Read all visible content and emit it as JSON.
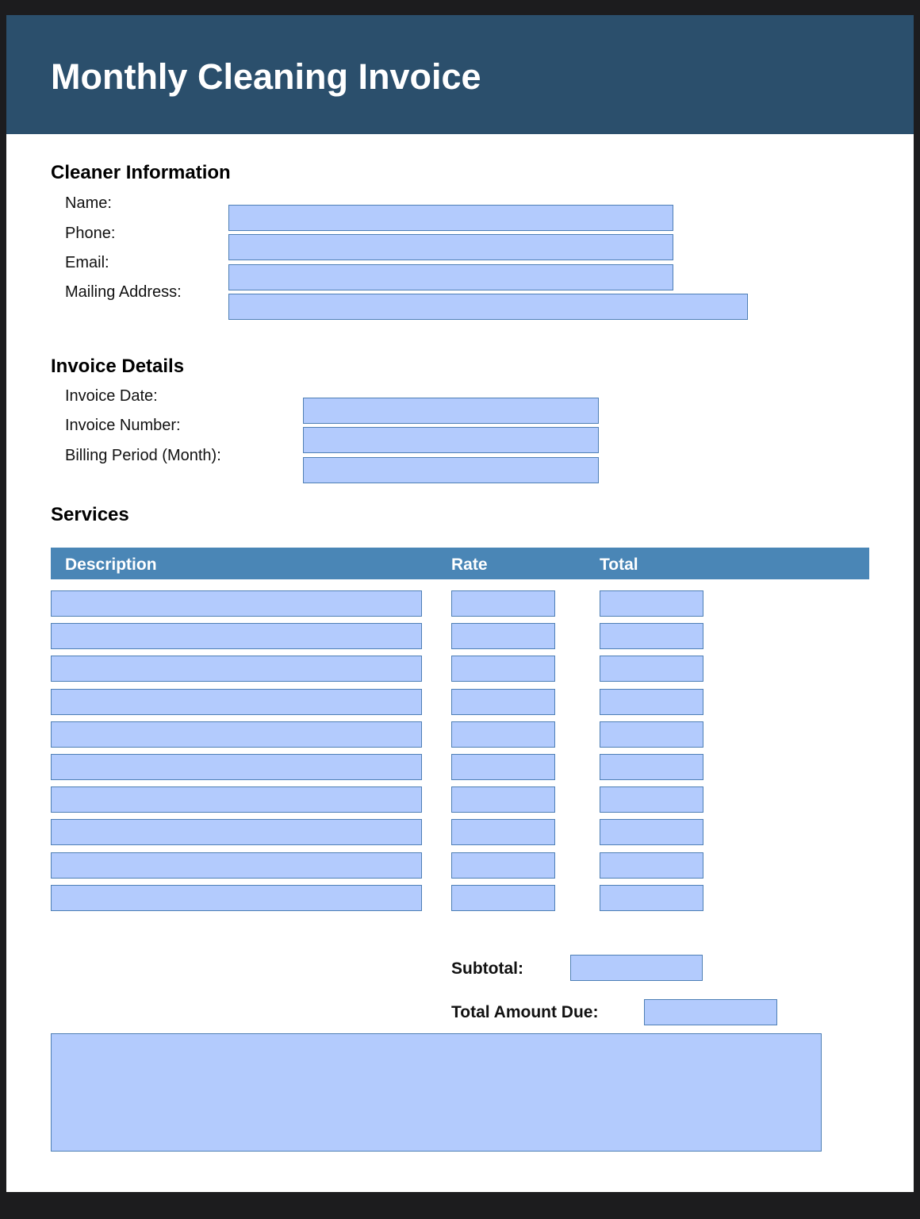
{
  "title": "Monthly Cleaning Invoice",
  "cleaner": {
    "heading": "Cleaner Information",
    "labels": [
      "Name:",
      "Phone:",
      "Email:",
      "Mailing Address:"
    ]
  },
  "invoice": {
    "heading": "Invoice Details",
    "labels": [
      "Invoice Date:",
      "Invoice Number:",
      "Billing Period (Month):"
    ]
  },
  "services": {
    "heading": "Services",
    "columns": [
      "Description",
      "Rate",
      "Total"
    ],
    "row_count": 10
  },
  "totals": {
    "subtotal_label": "Subtotal:",
    "total_due_label": "Total Amount Due:"
  },
  "colors": {
    "banner": "#2b4f6c",
    "table_header": "#4a86b6",
    "field_fill": "#b3cbfd",
    "field_border": "#4e7fb5"
  }
}
